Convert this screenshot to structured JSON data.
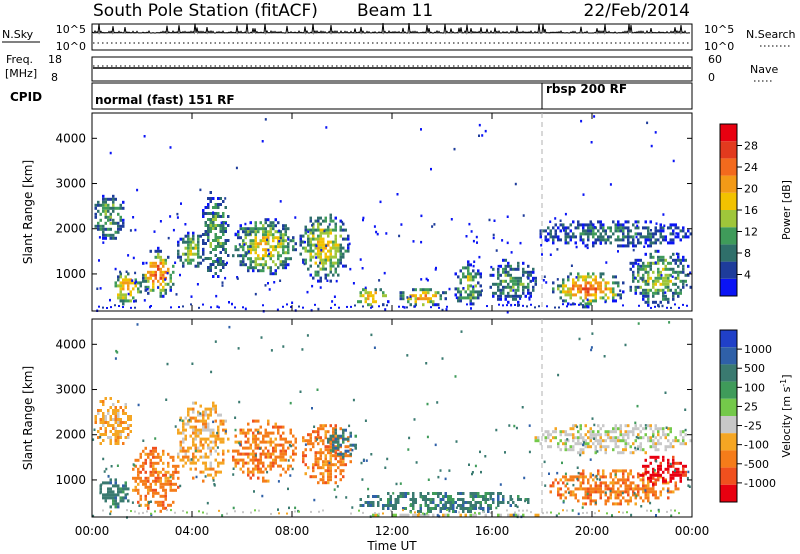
{
  "header": {
    "station": "South Pole Station (fitACF)",
    "beam": "Beam 11",
    "date": "22/Feb/2014"
  },
  "strip_labels": {
    "nsky": "N.Sky",
    "nsky_ticks": [
      "10^5",
      "10^0"
    ],
    "nsearch": "N.Search",
    "nsearch_ticks": [
      "10^5",
      "10^0"
    ],
    "freq": "Freq.",
    "freq_unit": "[MHz]",
    "freq_ticks": [
      "18",
      "8"
    ],
    "nave": "Nave",
    "nave_ticks": [
      "60",
      "0"
    ],
    "cpid": "CPID",
    "cpid_modes": [
      {
        "label": "normal (fast) 151 RF",
        "start_hour": 0
      },
      {
        "label": "rbsp 200 RF",
        "start_hour": 18
      }
    ]
  },
  "colors": {
    "background": "#ffffff",
    "frame": "#000000",
    "nsky_line": "#000000",
    "mode_change_line": "#b0b0b0"
  },
  "chart_data": [
    {
      "type": "heatmap",
      "title": "",
      "xlabel": "",
      "ylabel": "Slant Range [km]",
      "x_ticks": [
        "00:00",
        "04:00",
        "08:00",
        "12:00",
        "16:00",
        "20:00",
        "00:00"
      ],
      "xlim_hours": [
        0,
        24
      ],
      "y_ticks": [
        1000,
        2000,
        3000,
        4000
      ],
      "ylim": [
        180,
        4560
      ],
      "colorbar": {
        "label": "Power [dB]",
        "ticks": [
          4,
          8,
          12,
          16,
          20,
          24,
          28
        ],
        "range": [
          0,
          32
        ],
        "colors": [
          "#0a14f5",
          "#1e3c9b",
          "#2f6f6a",
          "#3f9b5a",
          "#9fc63a",
          "#f2c200",
          "#f39a17",
          "#f36a1d",
          "#e23a1e",
          "#e80010"
        ]
      },
      "regions": [
        {
          "t0": 0.0,
          "t1": 1.3,
          "r0": 1700,
          "r1": 2950,
          "level": 3
        },
        {
          "t0": 0.7,
          "t1": 2.0,
          "r0": 350,
          "r1": 1100,
          "level": 6
        },
        {
          "t0": 1.9,
          "t1": 3.3,
          "r0": 500,
          "r1": 1600,
          "level": 7
        },
        {
          "t0": 3.3,
          "t1": 4.5,
          "r0": 1100,
          "r1": 2000,
          "level": 4
        },
        {
          "t0": 4.3,
          "t1": 5.5,
          "r0": 900,
          "r1": 2900,
          "level": 3
        },
        {
          "t0": 5.5,
          "t1": 8.2,
          "r0": 1000,
          "r1": 2300,
          "level": 5
        },
        {
          "t0": 8.2,
          "t1": 10.3,
          "r0": 850,
          "r1": 2400,
          "level": 5
        },
        {
          "t0": 10.4,
          "t1": 11.9,
          "r0": 300,
          "r1": 750,
          "level": 6
        },
        {
          "t0": 12.2,
          "t1": 14.2,
          "r0": 300,
          "r1": 750,
          "level": 6
        },
        {
          "t0": 14.4,
          "t1": 15.6,
          "r0": 300,
          "r1": 1300,
          "level": 4
        },
        {
          "t0": 15.8,
          "t1": 17.8,
          "r0": 300,
          "r1": 1400,
          "level": 3
        },
        {
          "t0": 17.6,
          "t1": 24.0,
          "r0": 1600,
          "r1": 2250,
          "level": 2
        },
        {
          "t0": 18.3,
          "t1": 21.3,
          "r0": 300,
          "r1": 1100,
          "level": 7
        },
        {
          "t0": 21.3,
          "t1": 24.0,
          "r0": 300,
          "r1": 1600,
          "level": 4
        }
      ]
    },
    {
      "type": "heatmap",
      "title": "",
      "xlabel": "Time UT",
      "ylabel": "Slant Range [km]",
      "x_ticks": [
        "00:00",
        "04:00",
        "08:00",
        "12:00",
        "16:00",
        "20:00",
        "00:00"
      ],
      "xlim_hours": [
        0,
        24
      ],
      "y_ticks": [
        1000,
        2000,
        3000,
        4000
      ],
      "ylim": [
        180,
        4560
      ],
      "colorbar": {
        "label": "Velocity [m s^-1]",
        "ticks": [
          "1000",
          "500",
          "100",
          "25",
          "-25",
          "-100",
          "-500",
          "-1000"
        ],
        "colors": [
          "#2040c8",
          "#2f60a8",
          "#3a7a70",
          "#3f9b5a",
          "#74c94a",
          "#c8c8c8",
          "#f5a623",
          "#f57c1a",
          "#f0501e",
          "#e80010"
        ]
      },
      "regions": [
        {
          "t0": 0.0,
          "t1": 1.6,
          "r0": 1700,
          "r1": 2900,
          "vel": -100
        },
        {
          "t0": 0.2,
          "t1": 1.5,
          "r0": 350,
          "r1": 1100,
          "vel": 100
        },
        {
          "t0": 1.5,
          "t1": 3.5,
          "r0": 300,
          "r1": 1800,
          "vel": -500
        },
        {
          "t0": 3.3,
          "t1": 5.5,
          "r0": 1000,
          "r1": 2800,
          "vel": -100
        },
        {
          "t0": 5.5,
          "t1": 8.2,
          "r0": 1000,
          "r1": 2400,
          "vel": -500
        },
        {
          "t0": 8.2,
          "t1": 10.4,
          "r0": 900,
          "r1": 2300,
          "vel": -500
        },
        {
          "t0": 9.3,
          "t1": 10.6,
          "r0": 1500,
          "r1": 2200,
          "vel": 100
        },
        {
          "t0": 10.4,
          "t1": 17.7,
          "r0": 300,
          "r1": 800,
          "vel": 100
        },
        {
          "t0": 10.4,
          "t1": 18.4,
          "r0": 200,
          "r1": 320,
          "vel": 25
        },
        {
          "t0": 17.6,
          "t1": 24.0,
          "r0": 1600,
          "r1": 2300,
          "vel": 25
        },
        {
          "t0": 18.2,
          "t1": 23.5,
          "r0": 450,
          "r1": 1300,
          "vel": -500
        },
        {
          "t0": 21.8,
          "t1": 23.8,
          "r0": 900,
          "r1": 1600,
          "vel": -1000
        }
      ]
    }
  ]
}
